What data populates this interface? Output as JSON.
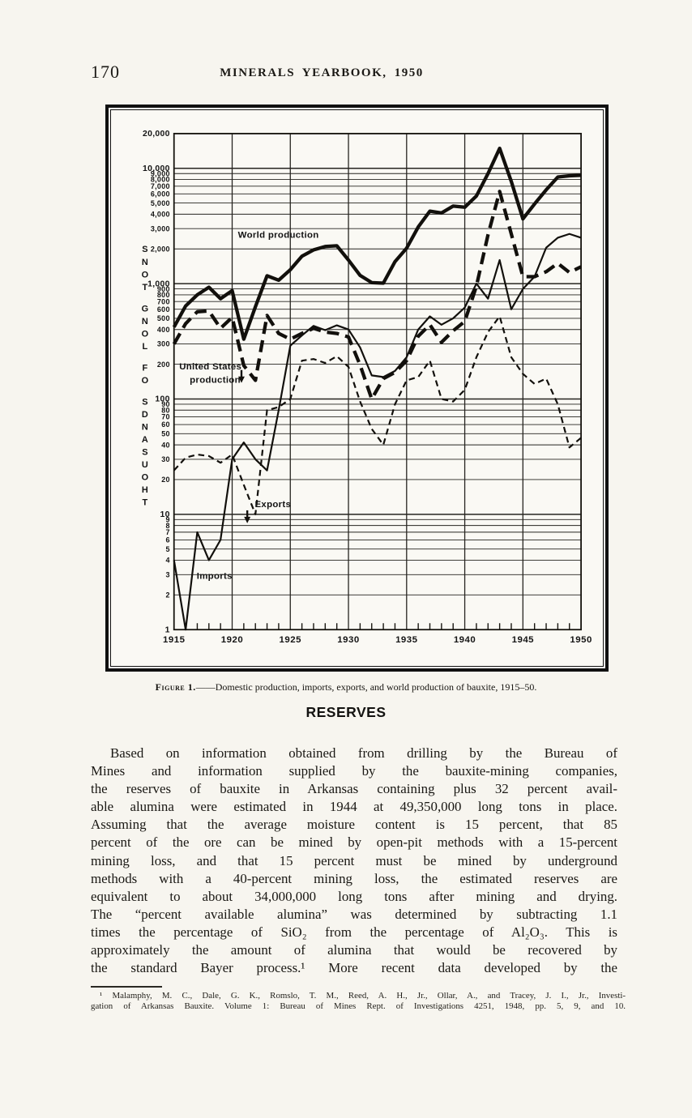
{
  "page": {
    "number": "170",
    "header_title": "MINERALS YEARBOOK, 1950"
  },
  "figure": {
    "caption_label": "Figure 1.",
    "caption_text": "——Domestic production, imports, exports, and world production of bauxite, 1915–50."
  },
  "section": {
    "heading": "RESERVES",
    "paragraph_lines": [
      "Based on information obtained from drilling by the Bureau of",
      "Mines and information supplied by the bauxite-mining companies,",
      "the reserves of bauxite in Arkansas containing plus 32 percent avail-",
      "able alumina were estimated in 1944 at 49,350,000 long tons in place.",
      "Assuming that the average moisture content is 15 percent, that 85",
      "percent of the ore can be mined by open-pit methods with a 15-percent",
      "mining loss, and that 15 percent must be mined by underground",
      "methods with a 40-percent mining loss, the estimated reserves are",
      "equivalent to about 34,000,000 long tons after mining and drying.",
      "The “percent available alumina” was determined by subtracting 1.1",
      "times the percentage of SiO₂ from the percentage of Al₂O₃.  This is",
      "approximately the amount of alumina that would be recovered by",
      "the standard Bayer process.¹  More recent data developed by the"
    ],
    "footnote_lines": [
      "¹ Malamphy, M. C., Dale, G. K., Romslo, T. M., Reed, A. H., Jr., Ollar, A., and Tracey, J. I., Jr., Investi-",
      "gation of Arkansas Bauxite.  Volume 1: Bureau of Mines Rept. of Investigations 4251, 1948, pp. 5, 9, and 10."
    ]
  },
  "chart_data": {
    "type": "line",
    "title": "Domestic production, imports, exports, and world production of bauxite, 1915-50",
    "ylabel": "THOUSANDS OF LONG TONS",
    "xlabel": "",
    "y_scale": "log",
    "ylim": [
      1,
      20000
    ],
    "grid": true,
    "x_ticks": [
      1915,
      1920,
      1925,
      1930,
      1935,
      1940,
      1945,
      1950
    ],
    "y_tick_labels": [
      "20,000",
      "10,000",
      "9,000",
      "8,000",
      "7,000",
      "6,000",
      "5,000",
      "4,000",
      "3,000",
      "2,000",
      "1,000",
      "900",
      "800",
      "700",
      "600",
      "500",
      "400",
      "300",
      "200",
      "100",
      "90",
      "80",
      "70",
      "60",
      "50",
      "40",
      "30",
      "20",
      "10",
      "9",
      "8",
      "7",
      "6",
      "5",
      "4",
      "3",
      "2",
      "1"
    ],
    "x": [
      1915,
      1916,
      1917,
      1918,
      1919,
      1920,
      1921,
      1922,
      1923,
      1924,
      1925,
      1926,
      1927,
      1928,
      1929,
      1930,
      1931,
      1932,
      1933,
      1934,
      1935,
      1936,
      1937,
      1938,
      1939,
      1940,
      1941,
      1942,
      1943,
      1944,
      1945,
      1946,
      1947,
      1948,
      1949,
      1950
    ],
    "series": [
      {
        "name": "World production",
        "style": "solid-thick",
        "values": [
          420,
          640,
          800,
          930,
          740,
          870,
          330,
          630,
          1170,
          1070,
          1320,
          1730,
          1960,
          2100,
          2130,
          1600,
          1180,
          1020,
          1010,
          1550,
          2030,
          3100,
          4250,
          4100,
          4700,
          4600,
          5750,
          9000,
          14900,
          7700,
          3640,
          4900,
          6500,
          8400,
          8600,
          8700
        ]
      },
      {
        "name": "United States production",
        "style": "dashed-thick",
        "values": [
          300,
          450,
          570,
          580,
          410,
          510,
          195,
          145,
          530,
          370,
          330,
          370,
          410,
          380,
          370,
          345,
          197,
          100,
          150,
          170,
          215,
          350,
          440,
          310,
          390,
          470,
          950,
          2650,
          6300,
          2700,
          1150,
          1150,
          1270,
          1500,
          1250,
          1400
        ]
      },
      {
        "name": "Imports",
        "style": "solid-thin",
        "values": [
          4,
          1,
          7,
          4,
          6,
          30,
          42,
          30,
          24,
          80,
          290,
          355,
          430,
          395,
          435,
          400,
          280,
          160,
          155,
          175,
          230,
          400,
          520,
          440,
          500,
          620,
          1000,
          740,
          1600,
          600,
          900,
          1150,
          2050,
          2500,
          2700,
          2500
        ]
      },
      {
        "name": "Exports",
        "style": "dashed-thin",
        "values": [
          24,
          31,
          33,
          32,
          28,
          33,
          18,
          10,
          80,
          85,
          100,
          215,
          222,
          205,
          235,
          190,
          95,
          55,
          40,
          90,
          145,
          155,
          215,
          100,
          95,
          120,
          230,
          380,
          520,
          230,
          165,
          135,
          150,
          90,
          38,
          46
        ]
      }
    ],
    "annotations": [
      {
        "text": "World production",
        "year": 1920.5,
        "value": 2500
      },
      {
        "text": "United States",
        "text2": "production",
        "year": 1915.45,
        "value": 180,
        "arrow": {
          "year": 1920.8,
          "value": 140
        }
      },
      {
        "text": "Exports",
        "year": 1921.95,
        "value": 11.5,
        "arrow": {
          "year": 1921.3,
          "value": 8.5
        }
      },
      {
        "text": "Imports",
        "year": 1916.95,
        "value": 2.75
      }
    ]
  }
}
